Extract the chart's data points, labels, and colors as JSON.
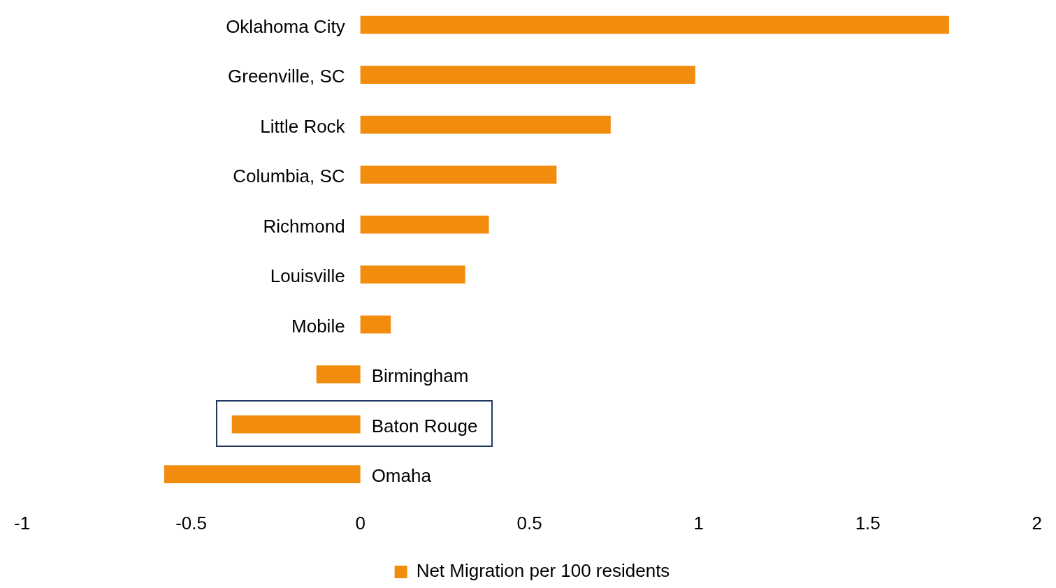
{
  "chart_data": {
    "type": "bar",
    "orientation": "horizontal",
    "categories": [
      "Oklahoma City",
      "Greenville, SC",
      "Little Rock",
      "Columbia, SC",
      "Richmond",
      "Louisville",
      "Mobile",
      "Birmingham",
      "Baton Rouge",
      "Omaha"
    ],
    "series": [
      {
        "name": "Net Migration per 100 residents",
        "color": "#f28c0f",
        "values": [
          1.74,
          0.99,
          0.74,
          0.58,
          0.38,
          0.31,
          0.09,
          -0.13,
          -0.38,
          -0.58
        ]
      }
    ],
    "xlim": [
      -1,
      2
    ],
    "xticks": [
      -1,
      -0.5,
      0,
      0.5,
      1,
      1.5,
      2
    ],
    "grid": false,
    "legend": "bottom"
  }
}
